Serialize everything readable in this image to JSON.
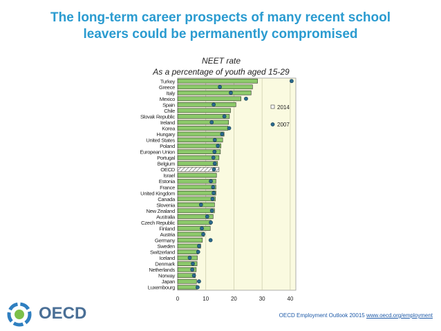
{
  "header": {
    "title_line1": "The long-term career prospects of many recent school",
    "title_line2": "leavers could be permanently compromised"
  },
  "chart_data": {
    "type": "bar",
    "title": "NEET rate",
    "subtitle": "As a percentage of youth aged 15-29",
    "categories": [
      "Turkey",
      "Greece",
      "Italy",
      "Mexico",
      "Spain",
      "Chile",
      "Slovak Republic",
      "Ireland",
      "Korea",
      "Hungary",
      "United States",
      "Poland",
      "European Union",
      "Portugal",
      "Belgium",
      "OECD",
      "Israel",
      "Estonia",
      "France",
      "United Kingdom",
      "Canada",
      "Slovenia",
      "New Zealand",
      "Australia",
      "Czech Republic",
      "Finland",
      "Austria",
      "Germany",
      "Sweden",
      "Switzerland",
      "Iceland",
      "Denmark",
      "Netherlands",
      "Norway",
      "Japan",
      "Luxembourg"
    ],
    "series": [
      {
        "name": "2014",
        "type": "bar",
        "color": "#8cc96a",
        "values": [
          28.4,
          26.6,
          26.1,
          22.5,
          20.7,
          18.8,
          18.4,
          18.1,
          17.9,
          16.5,
          16.0,
          15.4,
          15.2,
          14.7,
          14.2,
          14.7,
          13.8,
          13.6,
          13.6,
          13.6,
          13.4,
          13.1,
          13.1,
          12.6,
          11.9,
          11.6,
          9.5,
          8.8,
          8.2,
          7.3,
          7.0,
          6.9,
          6.6,
          6.3,
          6.7,
          6.9
        ]
      },
      {
        "name": "2007",
        "type": "marker",
        "color": "#2b6a8c",
        "values": [
          40.5,
          15.0,
          18.9,
          24.3,
          12.8,
          null,
          16.6,
          12.1,
          18.3,
          15.8,
          13.2,
          14.3,
          13.1,
          12.7,
          13.2,
          12.9,
          null,
          11.8,
          12.6,
          12.8,
          12.4,
          8.3,
          12.2,
          10.5,
          11.8,
          8.6,
          9.1,
          11.7,
          7.6,
          7.3,
          4.3,
          5.4,
          5.2,
          5.8,
          7.6,
          7.1
        ]
      }
    ],
    "hatched_category": "OECD",
    "xlim": [
      0,
      42
    ],
    "xticks": [
      0,
      10,
      20,
      30,
      40
    ],
    "grid": true,
    "legend_position": "right"
  },
  "logo": {
    "text": "OECD"
  },
  "footer": {
    "source": "OECD Employment Outlook 20015",
    "link": "www.oecd.org/employment"
  },
  "colors": {
    "title": "#2a9bd0",
    "plot_bg": "#fafae0",
    "bar": "#8cc96a",
    "marker": "#2b6a8c"
  }
}
